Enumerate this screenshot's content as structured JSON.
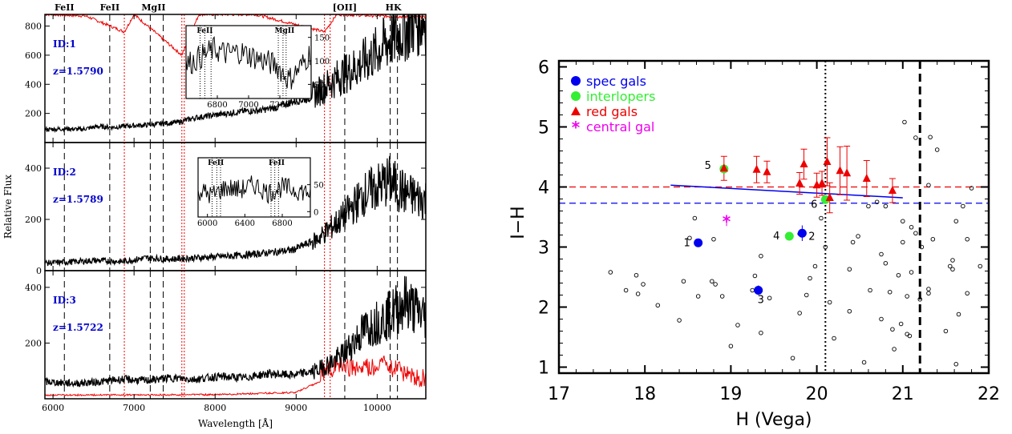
{
  "chart_data": [
    {
      "type": "line",
      "panel": "spectra",
      "xlabel": "Wavelength [Å]",
      "ylabel": "Relative Flux",
      "xlim": [
        5900,
        10600
      ],
      "xticks": [
        6000,
        7000,
        8000,
        9000,
        10000
      ],
      "line_labels": [
        {
          "text": "FeII",
          "x": 6140
        },
        {
          "text": "FeII",
          "x": 6700
        },
        {
          "text": "MgII",
          "x": 7240
        },
        {
          "text": "[OII]",
          "x": 9600
        },
        {
          "text": "HK",
          "x": 10200
        }
      ],
      "black_lines": [
        6140,
        6700,
        7200,
        7360,
        9600,
        10160,
        10250
      ],
      "red_lines": [
        6880,
        7590,
        7620,
        9350,
        9420
      ],
      "grid": false,
      "panels": [
        {
          "id_label": "ID:1",
          "z_label": "z=1.5790",
          "ylim": [
            0,
            880
          ],
          "yticks": [
            200,
            400,
            600,
            800
          ],
          "spectrum": {
            "x": [
              5950,
              6150,
              6350,
              6550,
              6750,
              6950,
              7150,
              7350,
              7550,
              7750,
              7950,
              8150,
              8350,
              8550,
              8750,
              8950,
              9150,
              9350,
              9550,
              9750,
              9950,
              10150,
              10350,
              10550
            ],
            "y": [
              90,
              95,
              90,
              110,
              105,
              115,
              120,
              130,
              140,
              170,
              185,
              200,
              215,
              220,
              240,
              280,
              300,
              380,
              460,
              520,
              600,
              700,
              780,
              850
            ]
          },
          "sky": {
            "x": [
              5950,
              6400,
              6880,
              7000,
              7590,
              7620,
              7800,
              8500,
              9350,
              9500,
              10000,
              10550
            ],
            "y": [
              880,
              870,
              760,
              880,
              600,
              640,
              880,
              880,
              760,
              880,
              870,
              860
            ]
          },
          "inset": {
            "xlim": [
              6600,
              7400
            ],
            "xticks": [
              6800,
              7000,
              7200
            ],
            "ylim": [
              20,
              175
            ],
            "yticks": [
              50,
              100,
              150
            ],
            "labels": [
              "FeII",
              "MgII"
            ],
            "x": [
              6620,
              6700,
              6780,
              6860,
              6940,
              7020,
              7100,
              7180,
              7260,
              7340,
              7400
            ],
            "y": [
              95,
              110,
              125,
              115,
              120,
              110,
              100,
              90,
              60,
              90,
              120
            ]
          }
        },
        {
          "id_label": "ID:2",
          "z_label": "z=1.5789",
          "ylim": [
            0,
            500
          ],
          "yticks": [
            0,
            200,
            400
          ],
          "spectrum": {
            "x": [
              5950,
              6250,
              6550,
              6850,
              7150,
              7450,
              7750,
              8050,
              8350,
              8650,
              8950,
              9250,
              9550,
              9850,
              10150,
              10350,
              10550
            ],
            "y": [
              30,
              35,
              40,
              35,
              50,
              45,
              50,
              55,
              60,
              70,
              80,
              120,
              200,
              300,
              350,
              300,
              280
            ]
          },
          "inset": {
            "xlim": [
              5900,
              7100
            ],
            "xticks": [
              6000,
              6400,
              6800
            ],
            "ylim": [
              -10,
              100
            ],
            "yticks": [
              0,
              50
            ],
            "labels": [
              "FeII",
              "FeII"
            ],
            "x": [
              5900,
              6050,
              6200,
              6350,
              6500,
              6650,
              6800,
              6950,
              7100
            ],
            "y": [
              40,
              30,
              45,
              40,
              50,
              35,
              45,
              40,
              35
            ]
          }
        },
        {
          "id_label": "ID:3",
          "z_label": "z=1.5722",
          "ylim": [
            0,
            460
          ],
          "yticks": [
            200,
            400
          ],
          "spectrum": {
            "x": [
              5950,
              6250,
              6550,
              6850,
              7150,
              7450,
              7750,
              8050,
              8350,
              8650,
              8950,
              9250,
              9550,
              9850,
              10150,
              10350,
              10550
            ],
            "y": [
              60,
              55,
              60,
              70,
              65,
              75,
              70,
              80,
              75,
              90,
              85,
              100,
              150,
              250,
              300,
              350,
              300
            ]
          },
          "sky": {
            "x": [
              5950,
              8000,
              9000,
              9300,
              9500,
              9800,
              10100,
              10300,
              10550
            ],
            "y": [
              10,
              12,
              20,
              60,
              80,
              70,
              90,
              60,
              40
            ]
          }
        }
      ]
    },
    {
      "type": "scatter",
      "panel": "color-magnitude",
      "xlabel": "H (Vega)",
      "ylabel": "I−H",
      "xlim": [
        17,
        22
      ],
      "ylim": [
        0.9,
        6.1
      ],
      "xticks": [
        17,
        18,
        19,
        20,
        21,
        22
      ],
      "yticks": [
        1,
        2,
        3,
        4,
        5,
        6
      ],
      "grid": false,
      "legend": {
        "placement": "top-left",
        "entries": [
          {
            "label": "spec gals",
            "marker": "circle",
            "color": "#0000ee"
          },
          {
            "label": "interlopers",
            "marker": "circle",
            "color": "#33ee33"
          },
          {
            "label": "red gals",
            "marker": "triangle",
            "color": "#ee0000"
          },
          {
            "label": "central gal",
            "marker": "star",
            "color": "#ee00ee"
          }
        ]
      },
      "reference_lines": [
        {
          "kind": "horizontal",
          "y": 4.0,
          "style": "dashed",
          "color": "#ee0000"
        },
        {
          "kind": "horizontal",
          "y": 3.73,
          "style": "dashed",
          "color": "#0000ee"
        },
        {
          "kind": "vertical",
          "x": 20.1,
          "style": "dotted",
          "color": "#000000"
        },
        {
          "kind": "vertical",
          "x": 21.2,
          "style": "dashed",
          "color": "#000000"
        },
        {
          "kind": "fit",
          "x": [
            18.3,
            21.0
          ],
          "y": [
            4.03,
            3.82
          ],
          "color": "#0000ee"
        }
      ],
      "spec_gals": [
        {
          "x": 18.62,
          "y": 3.07,
          "err": 0.0,
          "label": "1"
        },
        {
          "x": 19.83,
          "y": 3.23,
          "err": 0.13,
          "label": "2"
        },
        {
          "x": 19.32,
          "y": 2.28,
          "err": 0.08,
          "label": "3"
        }
      ],
      "interlopers": [
        {
          "x": 19.68,
          "y": 3.18,
          "label": "4"
        },
        {
          "x": 18.92,
          "y": 4.3,
          "label": "5"
        },
        {
          "x": 20.1,
          "y": 3.79,
          "label": "6"
        }
      ],
      "red_gals": [
        {
          "x": 18.92,
          "y": 4.31,
          "err": 0.2
        },
        {
          "x": 19.3,
          "y": 4.29,
          "err": 0.22
        },
        {
          "x": 19.42,
          "y": 4.25,
          "err": 0.18
        },
        {
          "x": 19.8,
          "y": 4.06,
          "err": 0.18
        },
        {
          "x": 19.85,
          "y": 4.38,
          "err": 0.25
        },
        {
          "x": 20.0,
          "y": 4.03,
          "err": 0.2
        },
        {
          "x": 20.06,
          "y": 4.06,
          "err": 0.2
        },
        {
          "x": 20.12,
          "y": 4.42,
          "err": 0.4
        },
        {
          "x": 20.15,
          "y": 3.82,
          "err": 0.25
        },
        {
          "x": 20.27,
          "y": 4.27,
          "err": 0.4
        },
        {
          "x": 20.35,
          "y": 4.23,
          "err": 0.45
        },
        {
          "x": 20.58,
          "y": 4.14,
          "err": 0.3
        },
        {
          "x": 20.88,
          "y": 3.94,
          "err": 0.2
        }
      ],
      "central_gal": [
        {
          "x": 18.95,
          "y": 3.43,
          "err": 0.08
        }
      ],
      "field_gals": [
        {
          "x": 17.6,
          "y": 2.58
        },
        {
          "x": 17.78,
          "y": 2.28
        },
        {
          "x": 17.9,
          "y": 2.53
        },
        {
          "x": 17.98,
          "y": 2.38
        },
        {
          "x": 17.92,
          "y": 2.22
        },
        {
          "x": 18.15,
          "y": 2.03
        },
        {
          "x": 18.4,
          "y": 1.78
        },
        {
          "x": 18.45,
          "y": 2.43
        },
        {
          "x": 18.52,
          "y": 3.15
        },
        {
          "x": 18.58,
          "y": 3.48
        },
        {
          "x": 18.62,
          "y": 2.18
        },
        {
          "x": 18.78,
          "y": 2.43
        },
        {
          "x": 18.82,
          "y": 2.38
        },
        {
          "x": 18.8,
          "y": 3.13
        },
        {
          "x": 18.9,
          "y": 2.18
        },
        {
          "x": 19.0,
          "y": 1.35
        },
        {
          "x": 19.08,
          "y": 1.7
        },
        {
          "x": 19.25,
          "y": 2.28
        },
        {
          "x": 19.28,
          "y": 2.52
        },
        {
          "x": 19.35,
          "y": 2.85
        },
        {
          "x": 19.45,
          "y": 2.15
        },
        {
          "x": 19.35,
          "y": 1.57
        },
        {
          "x": 19.8,
          "y": 1.9
        },
        {
          "x": 19.72,
          "y": 1.15
        },
        {
          "x": 19.8,
          "y": 3.22
        },
        {
          "x": 19.98,
          "y": 2.68
        },
        {
          "x": 19.92,
          "y": 2.48
        },
        {
          "x": 19.88,
          "y": 2.2
        },
        {
          "x": 20.05,
          "y": 3.48
        },
        {
          "x": 20.15,
          "y": 2.08
        },
        {
          "x": 20.2,
          "y": 1.48
        },
        {
          "x": 20.38,
          "y": 2.63
        },
        {
          "x": 20.38,
          "y": 1.93
        },
        {
          "x": 20.42,
          "y": 3.08
        },
        {
          "x": 20.48,
          "y": 3.18
        },
        {
          "x": 20.55,
          "y": 1.08
        },
        {
          "x": 20.6,
          "y": 3.68
        },
        {
          "x": 20.62,
          "y": 2.28
        },
        {
          "x": 20.7,
          "y": 3.75
        },
        {
          "x": 20.75,
          "y": 2.88
        },
        {
          "x": 20.75,
          "y": 1.8
        },
        {
          "x": 20.8,
          "y": 3.68
        },
        {
          "x": 20.8,
          "y": 2.73
        },
        {
          "x": 20.85,
          "y": 2.25
        },
        {
          "x": 20.88,
          "y": 1.63
        },
        {
          "x": 20.9,
          "y": 1.3
        },
        {
          "x": 20.95,
          "y": 2.53
        },
        {
          "x": 20.98,
          "y": 1.72
        },
        {
          "x": 21.0,
          "y": 3.08
        },
        {
          "x": 21.0,
          "y": 3.43
        },
        {
          "x": 21.02,
          "y": 5.08
        },
        {
          "x": 21.05,
          "y": 2.18
        },
        {
          "x": 21.05,
          "y": 1.55
        },
        {
          "x": 21.08,
          "y": 1.52
        },
        {
          "x": 21.1,
          "y": 3.33
        },
        {
          "x": 21.1,
          "y": 2.58
        },
        {
          "x": 21.15,
          "y": 4.82
        },
        {
          "x": 21.15,
          "y": 3.23
        },
        {
          "x": 21.2,
          "y": 2.13
        },
        {
          "x": 21.22,
          "y": 3.0
        },
        {
          "x": 21.3,
          "y": 4.03
        },
        {
          "x": 21.3,
          "y": 2.23
        },
        {
          "x": 21.3,
          "y": 2.3
        },
        {
          "x": 21.32,
          "y": 4.83
        },
        {
          "x": 21.35,
          "y": 3.13
        },
        {
          "x": 21.4,
          "y": 4.62
        },
        {
          "x": 21.5,
          "y": 1.6
        },
        {
          "x": 21.55,
          "y": 2.68
        },
        {
          "x": 21.58,
          "y": 2.78
        },
        {
          "x": 21.58,
          "y": 2.63
        },
        {
          "x": 21.62,
          "y": 3.43
        },
        {
          "x": 21.62,
          "y": 1.05
        },
        {
          "x": 21.65,
          "y": 1.88
        },
        {
          "x": 21.7,
          "y": 3.68
        },
        {
          "x": 21.75,
          "y": 3.13
        },
        {
          "x": 21.75,
          "y": 2.23
        },
        {
          "x": 21.8,
          "y": 3.98
        },
        {
          "x": 21.9,
          "y": 2.68
        },
        {
          "x": 20.1,
          "y": 3.0
        }
      ]
    }
  ]
}
